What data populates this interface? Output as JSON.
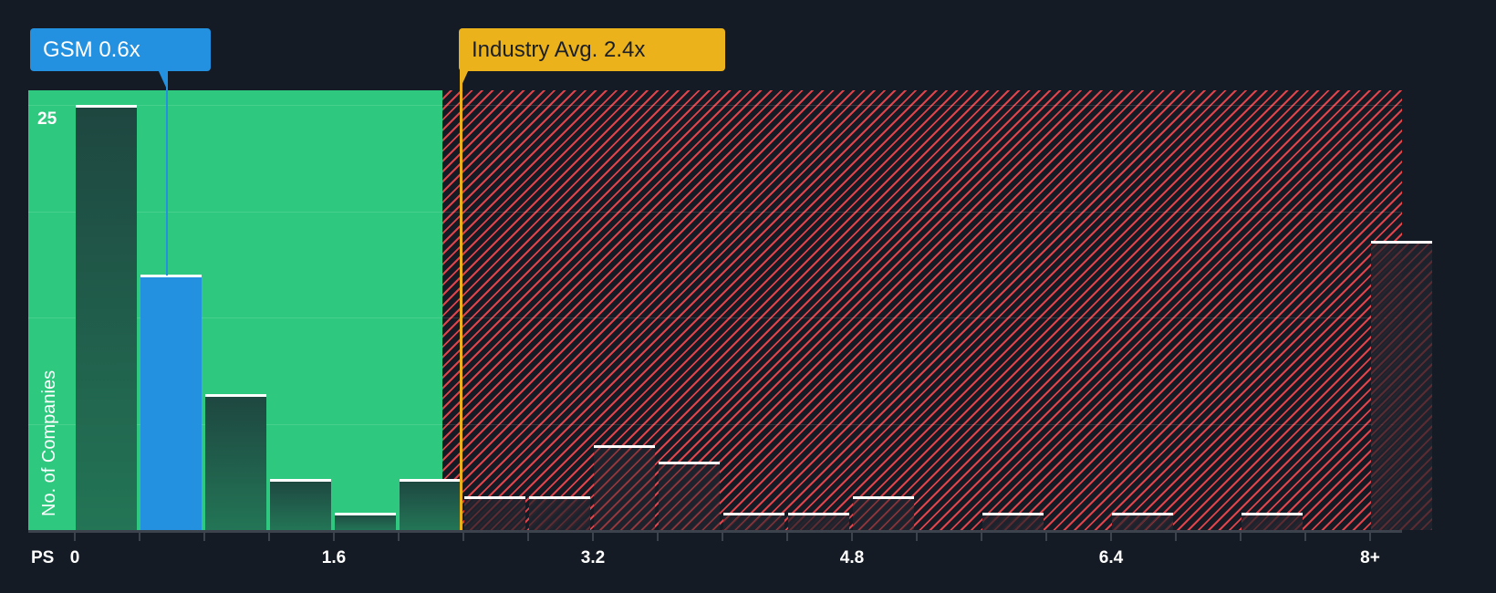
{
  "chart_data": {
    "type": "bar",
    "title": "",
    "xlabel": "PS",
    "ylabel": "No. of Companies",
    "x_tick_labels": [
      "0",
      "1.6",
      "3.2",
      "4.8",
      "6.4",
      "8+"
    ],
    "y_tick_labels": [
      "25"
    ],
    "ylim": [
      0,
      25
    ],
    "bin_width": 0.4,
    "categories": [
      "0-0.4",
      "0.4-0.8",
      "0.8-1.2",
      "1.2-1.6",
      "1.6-2.0",
      "2.0-2.4",
      "2.4-2.8",
      "2.8-3.2",
      "3.2-3.6",
      "3.6-4.0",
      "4.0-4.4",
      "4.4-4.8",
      "4.8-5.2",
      "5.2-5.6",
      "5.6-6.0",
      "6.0-6.4",
      "6.4-6.8",
      "6.8-7.2",
      "7.2-7.6",
      "7.6-8.0",
      "8+"
    ],
    "values": [
      25,
      15,
      8,
      3,
      1,
      3,
      2,
      2,
      5,
      4,
      1,
      1,
      2,
      0,
      1,
      0,
      1,
      0,
      1,
      0,
      17
    ],
    "highlight_bin_index": 1,
    "company": {
      "label": "GSM 0.6x",
      "ticker": "GSM",
      "value": 0.6
    },
    "industry_avg": {
      "label": "Industry Avg. 2.4x",
      "value": 2.4
    },
    "grid": true,
    "colors": {
      "background": "#151b24",
      "good_zone": "#2ec97f",
      "bad_zone_hatch": "#e0444a",
      "company": "#2391e0",
      "industry": "#ebb21b",
      "bar_cap": "#ffffff"
    }
  }
}
